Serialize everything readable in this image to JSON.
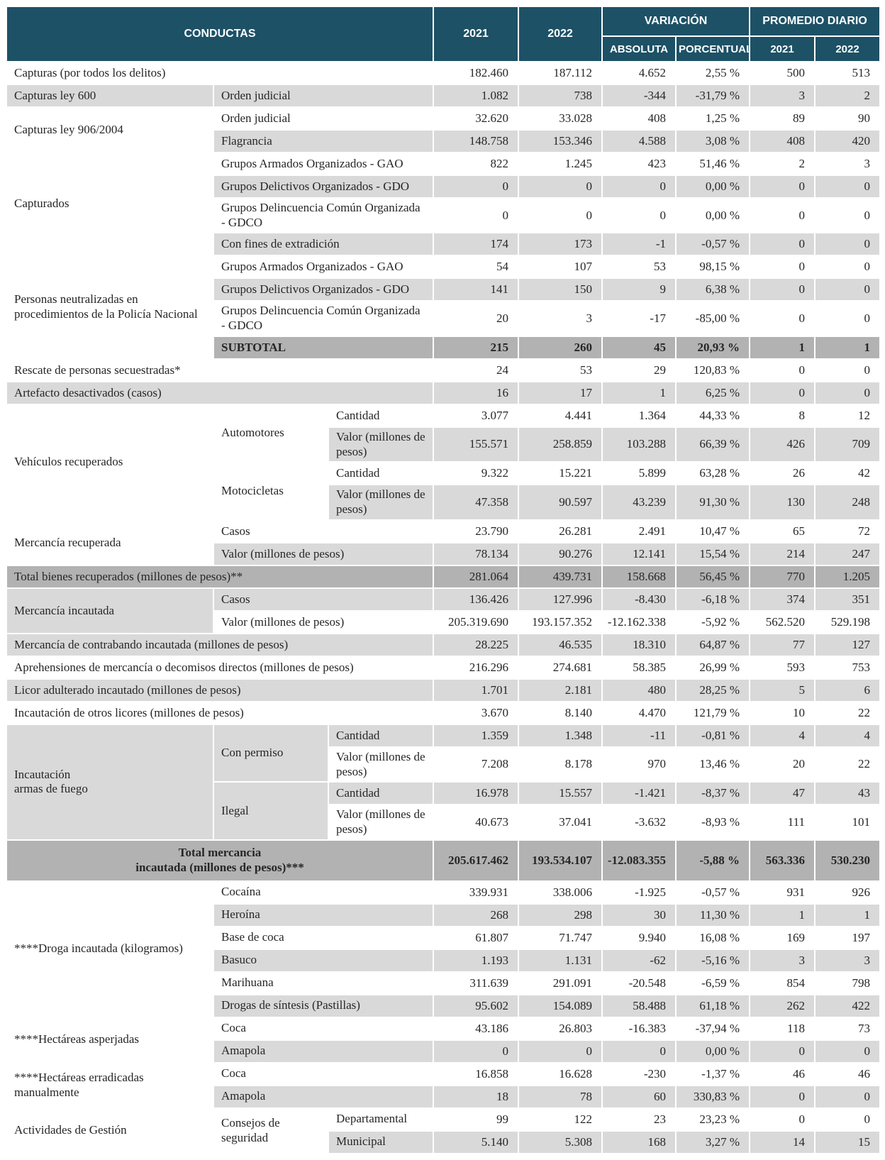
{
  "table": {
    "colors": {
      "header_bg": "#1d5166",
      "header_text": "#ffffff",
      "row_white": "#ffffff",
      "row_gray": "#d9d9d9",
      "row_dark": "#b2b2b2",
      "border": "#ffffff",
      "text": "#262626"
    },
    "header": {
      "conductas": "CONDUCTAS",
      "y2021": "2021",
      "y2022": "2022",
      "variacion": "VARIACIÓN",
      "absoluta": "ABSOLUTA",
      "porcentual": "PORCENTUAL",
      "promedio_diario": "PROMEDIO DIARIO",
      "p2021": "2021",
      "p2022": "2022"
    },
    "rows": [
      {
        "shade": "white",
        "h": 1,
        "labels": [
          {
            "text": "Capturas (por todos los delitos)",
            "colspan": 3
          }
        ],
        "values": [
          "182.460",
          "187.112",
          "4.652",
          "2,55 %",
          "500",
          "513"
        ]
      },
      {
        "shade": "gray",
        "h": 1,
        "labels": [
          {
            "text": "Capturas ley 600"
          },
          {
            "text": "Orden judicial",
            "colspan": 2
          }
        ],
        "values": [
          "1.082",
          "738",
          "-344",
          "-31,79 %",
          "3",
          "2"
        ]
      },
      {
        "shade": "white",
        "h": 1,
        "labels": [
          {
            "text": "Capturas ley 906/2004",
            "rowspan": 2
          },
          {
            "text": "Orden judicial",
            "colspan": 2
          }
        ],
        "values": [
          "32.620",
          "33.028",
          "408",
          "1,25 %",
          "89",
          "90"
        ]
      },
      {
        "shade": "gray",
        "h": 1,
        "labels": [
          {
            "text": "Flagrancia",
            "colspan": 2
          }
        ],
        "values": [
          "148.758",
          "153.346",
          "4.588",
          "3,08 %",
          "408",
          "420"
        ]
      },
      {
        "shade": "white",
        "h": 1,
        "labels": [
          {
            "text": "Capturados",
            "rowspan": 4
          },
          {
            "text": "Grupos Armados Organizados - GAO",
            "colspan": 2
          }
        ],
        "values": [
          "822",
          "1.245",
          "423",
          "51,46 %",
          "2",
          "3"
        ]
      },
      {
        "shade": "gray",
        "h": 1,
        "labels": [
          {
            "text": "Grupos Delictivos Organizados - GDO",
            "colspan": 2
          }
        ],
        "values": [
          "0",
          "0",
          "0",
          "0,00 %",
          "0",
          "0"
        ]
      },
      {
        "shade": "white",
        "h": 2,
        "labels": [
          {
            "text": "Grupos Delincuencia Común Organizada - GDCO",
            "colspan": 2
          }
        ],
        "values": [
          "0",
          "0",
          "0",
          "0,00 %",
          "0",
          "0"
        ]
      },
      {
        "shade": "gray",
        "h": 1,
        "labels": [
          {
            "text": "Con fines de extradición",
            "colspan": 2
          }
        ],
        "values": [
          "174",
          "173",
          "-1",
          "-0,57 %",
          "0",
          "0"
        ]
      },
      {
        "shade": "white",
        "h": 1,
        "labels": [
          {
            "text": "Personas neutralizadas en procedimientos de la Policía Nacional",
            "rowspan": 4
          },
          {
            "text": "Grupos Armados Organizados - GAO",
            "colspan": 2
          }
        ],
        "values": [
          "54",
          "107",
          "53",
          "98,15 %",
          "0",
          "0"
        ]
      },
      {
        "shade": "gray",
        "h": 1,
        "labels": [
          {
            "text": "Grupos Delictivos Organizados - GDO",
            "colspan": 2
          }
        ],
        "values": [
          "141",
          "150",
          "9",
          "6,38 %",
          "0",
          "0"
        ]
      },
      {
        "shade": "white",
        "h": 2,
        "labels": [
          {
            "text": "Grupos Delincuencia Común Organizada - GDCO",
            "colspan": 2
          }
        ],
        "values": [
          "20",
          "3",
          "-17",
          "-85,00 %",
          "0",
          "0"
        ]
      },
      {
        "shade": "dark",
        "h": 1,
        "bold": true,
        "labels": [
          {
            "text": "SUBTOTAL",
            "colspan": 2
          }
        ],
        "values": [
          "215",
          "260",
          "45",
          "20,93 %",
          "1",
          "1"
        ]
      },
      {
        "shade": "white",
        "h": 1,
        "labels": [
          {
            "text": "Rescate de personas secuestradas*",
            "colspan": 3
          }
        ],
        "values": [
          "24",
          "53",
          "29",
          "120,83 %",
          "0",
          "0"
        ]
      },
      {
        "shade": "gray",
        "h": 1,
        "labels": [
          {
            "text": "Artefacto desactivados (casos)",
            "colspan": 3
          }
        ],
        "values": [
          "16",
          "17",
          "1",
          "6,25 %",
          "0",
          "0"
        ]
      },
      {
        "shade": "white",
        "h": 1,
        "labels": [
          {
            "text": "Vehículos recuperados",
            "rowspan": 4
          },
          {
            "text": "Automotores",
            "rowspan": 2
          },
          {
            "text": "Cantidad"
          }
        ],
        "values": [
          "3.077",
          "4.441",
          "1.364",
          "44,33 %",
          "8",
          "12"
        ]
      },
      {
        "shade": "gray",
        "h": 2,
        "labels": [
          {
            "text": "Valor (millones de pesos)"
          }
        ],
        "values": [
          "155.571",
          "258.859",
          "103.288",
          "66,39 %",
          "426",
          "709"
        ]
      },
      {
        "shade": "white",
        "h": 1,
        "labels": [
          {
            "text": "Motocicletas",
            "rowspan": 2
          },
          {
            "text": "Cantidad"
          }
        ],
        "values": [
          "9.322",
          "15.221",
          "5.899",
          "63,28 %",
          "26",
          "42"
        ]
      },
      {
        "shade": "gray",
        "h": 2,
        "labels": [
          {
            "text": "Valor (millones de pesos)"
          }
        ],
        "values": [
          "47.358",
          "90.597",
          "43.239",
          "91,30 %",
          "130",
          "248"
        ]
      },
      {
        "shade": "white",
        "h": 1,
        "labels": [
          {
            "text": "Mercancía recuperada",
            "rowspan": 2
          },
          {
            "text": "Casos",
            "colspan": 2
          }
        ],
        "values": [
          "23.790",
          "26.281",
          "2.491",
          "10,47 %",
          "65",
          "72"
        ]
      },
      {
        "shade": "gray",
        "h": 1,
        "labels": [
          {
            "text": "Valor (millones de pesos)",
            "colspan": 2
          }
        ],
        "values": [
          "78.134",
          "90.276",
          "12.141",
          "15,54 %",
          "214",
          "247"
        ]
      },
      {
        "shade": "dark",
        "h": 1,
        "labels": [
          {
            "text": "Total bienes recuperados (millones de pesos)**",
            "colspan": 3
          }
        ],
        "values": [
          "281.064",
          "439.731",
          "158.668",
          "56,45 %",
          "770",
          "1.205"
        ]
      },
      {
        "shade": "gray",
        "h": 1,
        "labels": [
          {
            "text": "Mercancía incautada",
            "rowspan": 2
          },
          {
            "text": "Casos",
            "colspan": 2
          }
        ],
        "values": [
          "136.426",
          "127.996",
          "-8.430",
          "-6,18 %",
          "374",
          "351"
        ]
      },
      {
        "shade": "white",
        "h": 1,
        "labels": [
          {
            "text": "Valor (millones de pesos)",
            "colspan": 2
          }
        ],
        "values": [
          "205.319.690",
          "193.157.352",
          "-12.162.338",
          "-5,92 %",
          "562.520",
          "529.198"
        ]
      },
      {
        "shade": "gray",
        "h": 1,
        "labels": [
          {
            "text": "Mercancía de contrabando incautada (millones de pesos)",
            "colspan": 3
          }
        ],
        "values": [
          "28.225",
          "46.535",
          "18.310",
          "64,87 %",
          "77",
          "127"
        ]
      },
      {
        "shade": "white",
        "h": 1,
        "labels": [
          {
            "text": "Aprehensiones de mercancía o decomisos directos (millones de pesos)",
            "colspan": 3
          }
        ],
        "values": [
          "216.296",
          "274.681",
          "58.385",
          "26,99 %",
          "593",
          "753"
        ]
      },
      {
        "shade": "gray",
        "h": 1,
        "labels": [
          {
            "text": "Licor adulterado incautado (millones de pesos)",
            "colspan": 3
          }
        ],
        "values": [
          "1.701",
          "2.181",
          "480",
          "28,25 %",
          "5",
          "6"
        ]
      },
      {
        "shade": "white",
        "h": 1,
        "labels": [
          {
            "text": "Incautación de otros licores (millones de pesos)",
            "colspan": 3
          }
        ],
        "values": [
          "3.670",
          "8.140",
          "4.470",
          "121,79 %",
          "10",
          "22"
        ]
      },
      {
        "shade": "gray",
        "h": 1,
        "labels": [
          {
            "text": "Incautación\narmas de fuego",
            "rowspan": 4
          },
          {
            "text": "Con permiso",
            "rowspan": 2
          },
          {
            "text": "Cantidad"
          }
        ],
        "values": [
          "1.359",
          "1.348",
          "-11",
          "-0,81 %",
          "4",
          "4"
        ]
      },
      {
        "shade": "white",
        "h": 2,
        "labels": [
          {
            "text": "Valor (millones de pesos)"
          }
        ],
        "values": [
          "7.208",
          "8.178",
          "970",
          "13,46 %",
          "20",
          "22"
        ]
      },
      {
        "shade": "gray",
        "h": 1,
        "labels": [
          {
            "text": "Ilegal",
            "rowspan": 2
          },
          {
            "text": "Cantidad"
          }
        ],
        "values": [
          "16.978",
          "15.557",
          "-1.421",
          "-8,37 %",
          "47",
          "43"
        ]
      },
      {
        "shade": "white",
        "h": 2,
        "labels": [
          {
            "text": "Valor (millones de pesos)"
          }
        ],
        "values": [
          "40.673",
          "37.041",
          "-3.632",
          "-8,93 %",
          "111",
          "101"
        ]
      },
      {
        "shade": "dark",
        "h": 3,
        "bold": true,
        "labels": [
          {
            "text": "Total mercancia\nincautada (millones de pesos)***",
            "colspan": 3,
            "center": true
          }
        ],
        "values": [
          "205.617.462",
          "193.534.107",
          "-12.083.355",
          "-5,88 %",
          "563.336",
          "530.230"
        ]
      },
      {
        "shade": "white",
        "h": 1,
        "labels": [
          {
            "text": "****Droga incautada (kilogramos)",
            "rowspan": 6
          },
          {
            "text": "Cocaína",
            "colspan": 2
          }
        ],
        "values": [
          "339.931",
          "338.006",
          "-1.925",
          "-0,57 %",
          "931",
          "926"
        ]
      },
      {
        "shade": "gray",
        "h": 1,
        "labels": [
          {
            "text": "Heroína",
            "colspan": 2
          }
        ],
        "values": [
          "268",
          "298",
          "30",
          "11,30 %",
          "1",
          "1"
        ]
      },
      {
        "shade": "white",
        "h": 1,
        "labels": [
          {
            "text": "Base de coca",
            "colspan": 2
          }
        ],
        "values": [
          "61.807",
          "71.747",
          "9.940",
          "16,08 %",
          "169",
          "197"
        ]
      },
      {
        "shade": "gray",
        "h": 1,
        "labels": [
          {
            "text": "Basuco",
            "colspan": 2
          }
        ],
        "values": [
          "1.193",
          "1.131",
          "-62",
          "-5,16 %",
          "3",
          "3"
        ]
      },
      {
        "shade": "white",
        "h": 1,
        "labels": [
          {
            "text": "Marihuana",
            "colspan": 2
          }
        ],
        "values": [
          "311.639",
          "291.091",
          "-20.548",
          "-6,59 %",
          "854",
          "798"
        ]
      },
      {
        "shade": "gray",
        "h": 1,
        "labels": [
          {
            "text": "Drogas de síntesis (Pastillas)",
            "colspan": 2
          }
        ],
        "values": [
          "95.602",
          "154.089",
          "58.488",
          "61,18 %",
          "262",
          "422"
        ]
      },
      {
        "shade": "white",
        "h": 1,
        "labels": [
          {
            "text": "****Hectáreas asperjadas",
            "rowspan": 2
          },
          {
            "text": "Coca",
            "colspan": 2
          }
        ],
        "values": [
          "43.186",
          "26.803",
          "-16.383",
          "-37,94 %",
          "118",
          "73"
        ]
      },
      {
        "shade": "gray",
        "h": 1,
        "labels": [
          {
            "text": "Amapola",
            "colspan": 2
          }
        ],
        "values": [
          "0",
          "0",
          "0",
          "0,00 %",
          "0",
          "0"
        ]
      },
      {
        "shade": "white",
        "h": 1,
        "labels": [
          {
            "text": "****Hectáreas erradicadas manualmente",
            "rowspan": 2
          },
          {
            "text": "Coca",
            "colspan": 2
          }
        ],
        "values": [
          "16.858",
          "16.628",
          "-230",
          "-1,37 %",
          "46",
          "46"
        ]
      },
      {
        "shade": "gray",
        "h": 1,
        "labels": [
          {
            "text": "Amapola",
            "colspan": 2
          }
        ],
        "values": [
          "18",
          "78",
          "60",
          "330,83 %",
          "0",
          "0"
        ]
      },
      {
        "shade": "white",
        "h": 1,
        "labels": [
          {
            "text": "Actividades de Gestión",
            "rowspan": 2
          },
          {
            "text": "Consejos de seguridad",
            "rowspan": 2
          },
          {
            "text": "Departamental"
          }
        ],
        "values": [
          "99",
          "122",
          "23",
          "23,23 %",
          "0",
          "0"
        ]
      },
      {
        "shade": "gray",
        "h": 1,
        "labels": [
          {
            "text": "Municipal"
          }
        ],
        "values": [
          "5.140",
          "5.308",
          "168",
          "3,27 %",
          "14",
          "15"
        ]
      }
    ]
  }
}
